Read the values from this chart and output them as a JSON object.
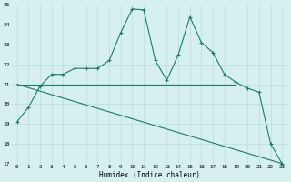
{
  "line1_x": [
    0,
    1,
    2,
    3,
    4,
    5,
    6,
    7,
    8,
    9,
    10,
    11,
    12,
    13,
    14,
    15,
    16,
    17,
    18,
    19,
    20,
    21,
    22,
    23
  ],
  "line1_y": [
    19.1,
    19.85,
    20.9,
    21.5,
    21.5,
    21.8,
    21.8,
    21.8,
    22.2,
    23.6,
    24.8,
    24.75,
    22.2,
    21.2,
    22.5,
    24.4,
    23.1,
    22.6,
    21.5,
    21.1,
    20.8,
    20.6,
    18.0,
    17.0
  ],
  "line2_x": [
    0,
    19
  ],
  "line2_y": [
    21.0,
    21.0
  ],
  "line3_x": [
    0,
    23
  ],
  "line3_y": [
    21.0,
    17.0
  ],
  "line4_x": [
    3,
    19
  ],
  "line4_y": [
    21.0,
    21.0
  ],
  "color": "#1a7a6e",
  "bg_color": "#d6f0ef",
  "grid_color": "#b8ddd9",
  "xlabel": "Humidex (Indice chaleur)",
  "xlim": [
    -0.5,
    23.5
  ],
  "ylim": [
    17,
    25
  ],
  "yticks": [
    17,
    18,
    19,
    20,
    21,
    22,
    23,
    24,
    25
  ],
  "xticks": [
    0,
    1,
    2,
    3,
    4,
    5,
    6,
    7,
    8,
    9,
    10,
    11,
    12,
    13,
    14,
    15,
    16,
    17,
    18,
    19,
    20,
    21,
    22,
    23
  ]
}
